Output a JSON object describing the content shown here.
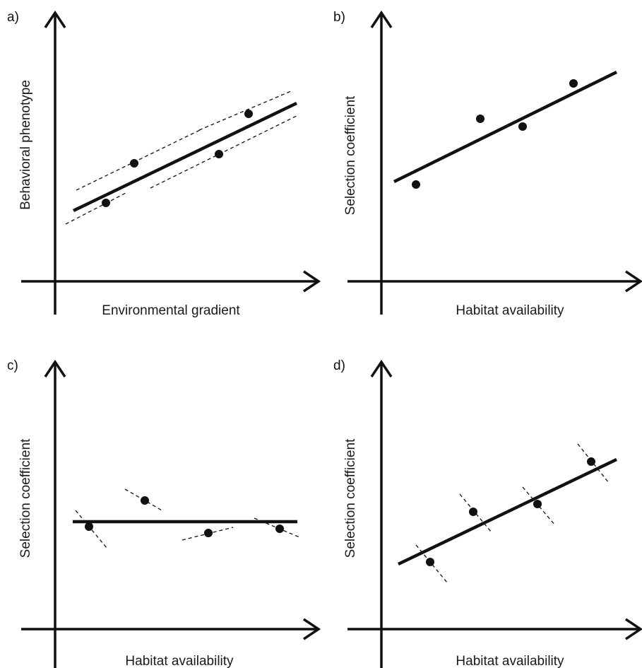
{
  "panels": [
    {
      "id": "a",
      "label": "a)",
      "xlabel": "Environmental  gradient",
      "ylabel": "Behavioral phenotype",
      "elements": {
        "fit_line": "solid regression line",
        "dashed_lines": 3,
        "points": 4
      }
    },
    {
      "id": "b",
      "label": "b)",
      "xlabel": "Habitat availability",
      "ylabel": "Selection coefficient",
      "elements": {
        "fit_line": "solid regression line",
        "dashed_lines": 0,
        "points": 4
      }
    },
    {
      "id": "c",
      "label": "c)",
      "xlabel": "Habitat availability",
      "ylabel": "Selection coefficient",
      "elements": {
        "fit_line": "solid horizontal line",
        "dashed_lines": 4,
        "points": 4
      }
    },
    {
      "id": "d",
      "label": "d)",
      "xlabel": "Habitat availability",
      "ylabel": "Selection coefficient",
      "elements": {
        "fit_line": "solid regression line",
        "dashed_lines": 4,
        "points": 4
      }
    }
  ],
  "colors": {
    "ink": "#111111",
    "background": "#ffffff"
  }
}
